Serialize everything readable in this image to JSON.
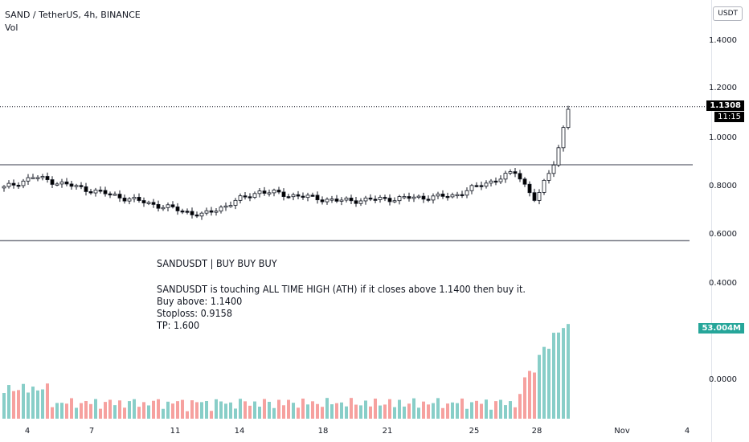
{
  "header": {
    "symbol_line": "SAND / TetherUS, 4h, BINANCE",
    "indicator": "Vol"
  },
  "axis_badge": "USDT",
  "note": {
    "title": "SANDUSDT | BUY BUY BUY",
    "lines": [
      "SANDUSDT is touching ALL TIME HIGH (ATH) if it closes above 1.1400 then buy it.",
      "Buy above: 1.1400",
      "Stoploss: 0.9158",
      "TP: 1.600"
    ]
  },
  "price_tags": {
    "last_price": "1.1308",
    "countdown": "11:15",
    "volume": "53.004M"
  },
  "colors": {
    "up": "#26a69a",
    "down": "#ef5350",
    "candle_body_up": "#ffffff",
    "candle_body_down": "#000000",
    "level_line": "#787b86",
    "price_tag_bg": "#000000",
    "volume_tag_bg": "#26a69a"
  },
  "chart_data": {
    "type": "candlestick",
    "price_axis": {
      "ticks": [
        "1.4000",
        "1.2000",
        "1.0000",
        "0.8000",
        "0.6000",
        "0.4000",
        "0.0000"
      ],
      "unit": "USDT"
    },
    "time_axis": {
      "ticks": [
        "4",
        "7",
        "11",
        "14",
        "18",
        "21",
        "25",
        "28",
        "Nov",
        "4"
      ]
    },
    "horizontal_levels": [
      1.1308,
      0.89,
      0.575
    ],
    "last_price": 1.1308,
    "last_volume": "53.004M"
  }
}
